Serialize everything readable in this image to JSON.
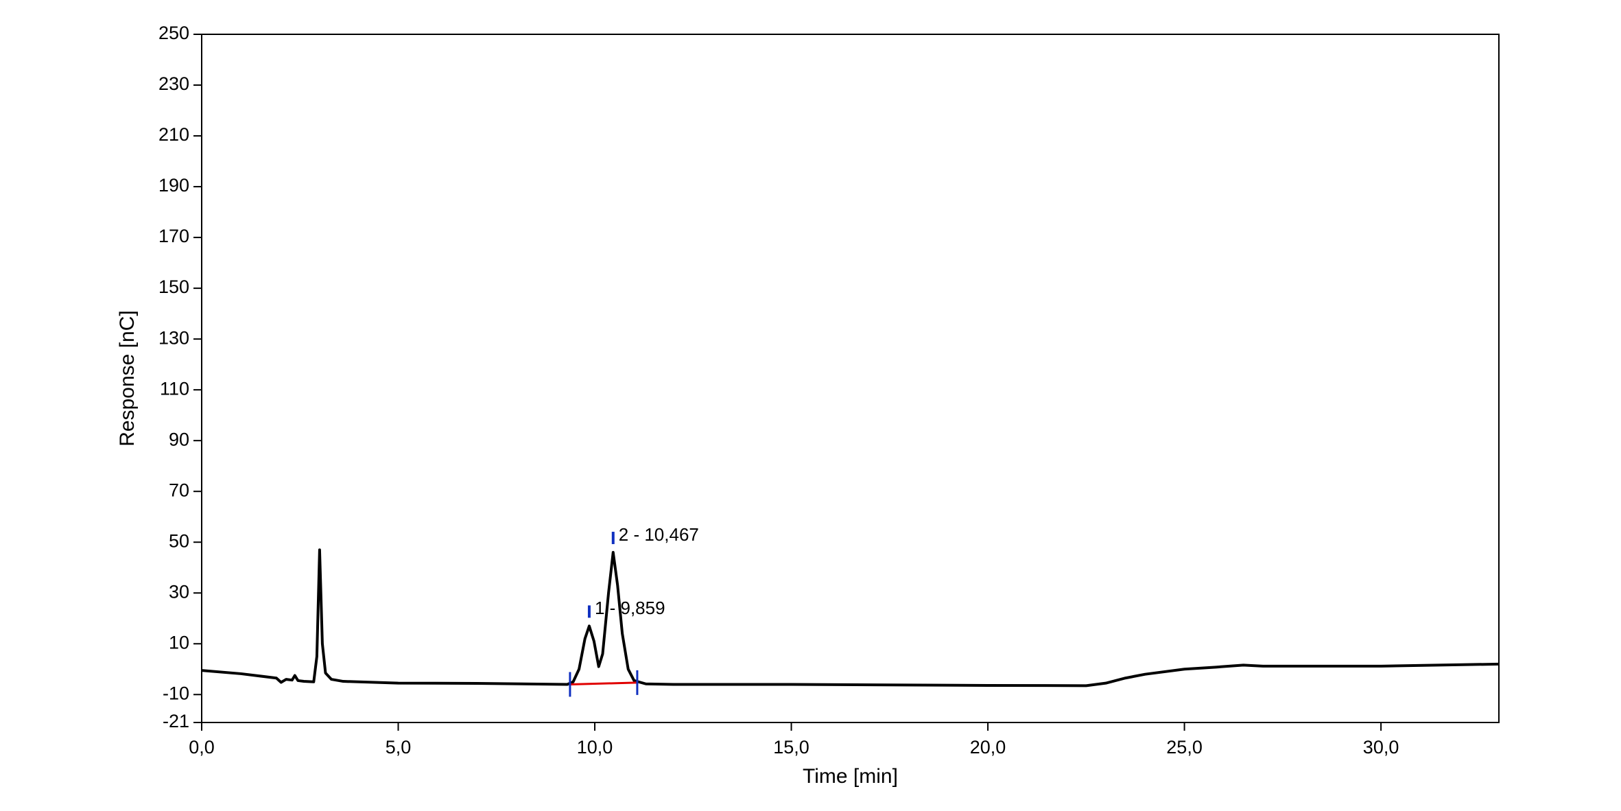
{
  "chart_data": {
    "type": "line",
    "x_label": "Time [min]",
    "y_label": "Response [nC]",
    "xlim": [
      0,
      33
    ],
    "ylim": [
      -21,
      250
    ],
    "xticks": [
      {
        "value": 0,
        "label": "0,0"
      },
      {
        "value": 5,
        "label": "5,0"
      },
      {
        "value": 10,
        "label": "10,0"
      },
      {
        "value": 15,
        "label": "15,0"
      },
      {
        "value": 20,
        "label": "20,0"
      },
      {
        "value": 25,
        "label": "25,0"
      },
      {
        "value": 30,
        "label": "30,0"
      }
    ],
    "yticks": [
      250,
      230,
      210,
      190,
      170,
      150,
      130,
      110,
      90,
      70,
      50,
      30,
      10,
      -10,
      -21
    ],
    "series": [
      {
        "color": "#000000",
        "x": [
          0,
          1.0,
          1.9,
          2.02,
          2.15,
          2.3,
          2.37,
          2.45,
          2.6,
          2.85,
          2.93,
          3.0,
          3.07,
          3.15,
          3.3,
          3.6,
          5.0,
          7.0,
          9.3,
          9.45,
          9.6,
          9.75,
          9.859,
          9.98,
          10.1,
          10.2,
          10.35,
          10.467,
          10.58,
          10.7,
          10.85,
          11.0,
          11.3,
          12.0,
          15.0,
          20.0,
          22.5,
          23.0,
          23.5,
          24.0,
          25.0,
          25.8,
          26.5,
          27.0,
          30.0,
          33.0
        ],
        "values": [
          -0.5,
          -1.8,
          -3.5,
          -5.2,
          -4.0,
          -4.3,
          -2.5,
          -4.5,
          -4.8,
          -5.0,
          5,
          47,
          10,
          -1.5,
          -4.0,
          -4.8,
          -5.5,
          -5.6,
          -6.0,
          -5.0,
          0,
          12,
          17,
          11,
          1,
          6,
          30,
          46,
          33,
          14,
          0,
          -4.5,
          -5.8,
          -6.0,
          -6.0,
          -6.4,
          -6.5,
          -5.5,
          -3.5,
          -2.0,
          0,
          0.8,
          1.6,
          1.2,
          1.2,
          2.0
        ]
      }
    ],
    "baseline": {
      "color": "#e00000",
      "x": [
        9.37,
        11.08
      ],
      "values": [
        -6.0,
        -5.3
      ]
    },
    "annotations": [
      {
        "text": "1 - 9,859",
        "x": 9.859,
        "y": 17
      },
      {
        "text": "2 - 10,467",
        "x": 10.467,
        "y": 46
      }
    ]
  }
}
